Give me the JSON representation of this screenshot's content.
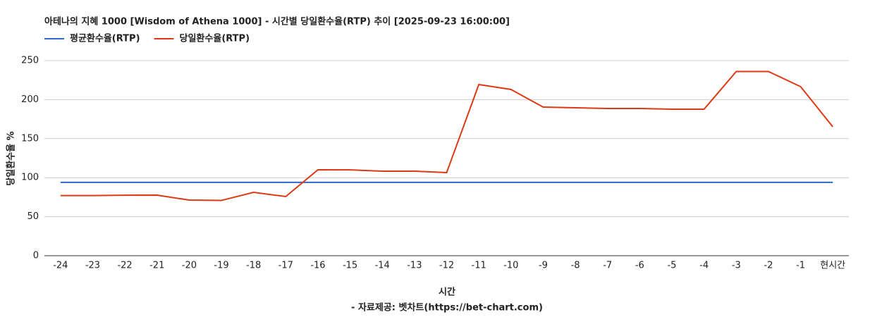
{
  "chart_data": {
    "type": "line",
    "title": "아테나의 지혜 1000 [Wisdom of Athena 1000] - 시간별 당일환수율(RTP) 추이 [2025-09-23 16:00:00]",
    "x_label": "시간",
    "y_label": "당일환수율 %",
    "source": "- 자료제공: 벳차트(https://bet-chart.com)",
    "categories": [
      "-24",
      "-23",
      "-22",
      "-21",
      "-20",
      "-19",
      "-18",
      "-17",
      "-16",
      "-15",
      "-14",
      "-13",
      "-12",
      "-11",
      "-10",
      "-9",
      "-8",
      "-7",
      "-6",
      "-5",
      "-4",
      "-3",
      "-2",
      "-1",
      "현시간"
    ],
    "series": [
      {
        "name": "평균환수율(RTP)",
        "color": "#3366cc",
        "values": [
          94,
          94,
          94,
          94,
          94,
          94,
          94,
          94,
          94,
          94,
          94,
          94,
          94,
          94,
          94,
          94,
          94,
          94,
          94,
          94,
          94,
          94,
          94,
          94,
          94
        ]
      },
      {
        "name": "당일환수율(RTP)",
        "color": "#dc3912",
        "values": [
          77,
          77,
          77.5,
          77.6,
          71.3,
          70.8,
          81.2,
          75.8,
          110.1,
          110,
          108.3,
          108.3,
          106.5,
          219.3,
          213,
          190.4,
          189.5,
          188.6,
          188.6,
          187.7,
          187.7,
          236,
          236,
          216.6,
          165.2
        ]
      }
    ],
    "ylim": [
      0,
      250
    ],
    "yticks": [
      0,
      50,
      100,
      150,
      200,
      250
    ],
    "grid": true,
    "legend": "top"
  }
}
